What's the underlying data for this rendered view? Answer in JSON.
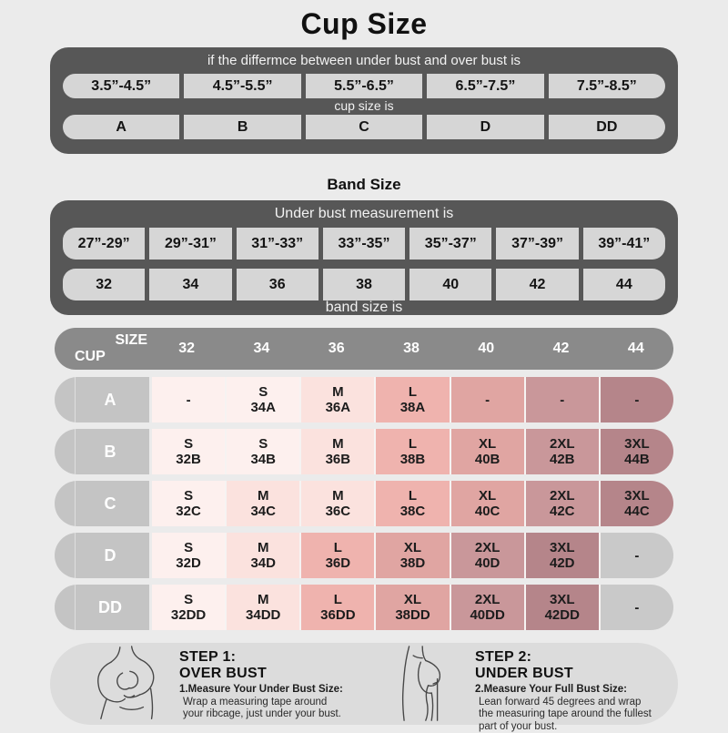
{
  "title": "Cup Size",
  "band_title": "Band Size",
  "cup_table": {
    "header": "if the differmce between under bust and over bust is",
    "ranges": [
      "3.5”-4.5”",
      "4.5”-5.5”",
      "5.5”-6.5”",
      "6.5”-7.5”",
      "7.5”-8.5”"
    ],
    "mid_label": "cup size is",
    "cups": [
      "A",
      "B",
      "C",
      "D",
      "DD"
    ]
  },
  "band_table": {
    "header": "Under bust measurement is",
    "ranges": [
      "27”-29”",
      "29”-31”",
      "31”-33”",
      "33”-35”",
      "35”-37”",
      "37”-39”",
      "39”-41”"
    ],
    "bands": [
      "32",
      "34",
      "36",
      "38",
      "40",
      "42",
      "44"
    ],
    "footer_label": "band size is"
  },
  "matrix": {
    "corner_top": "SIZE",
    "corner_bottom": "CUP",
    "columns": [
      "32",
      "34",
      "36",
      "38",
      "40",
      "42",
      "44"
    ],
    "rows": [
      {
        "cup": "A",
        "cells": [
          {
            "size": "-",
            "code": "",
            "shade": "s"
          },
          {
            "size": "S",
            "code": "34A",
            "shade": "s"
          },
          {
            "size": "M",
            "code": "36A",
            "shade": "m"
          },
          {
            "size": "L",
            "code": "38A",
            "shade": "l"
          },
          {
            "size": "-",
            "code": "",
            "shade": "xl"
          },
          {
            "size": "-",
            "code": "",
            "shade": "xxl"
          },
          {
            "size": "-",
            "code": "",
            "shade": "xxxl"
          }
        ]
      },
      {
        "cup": "B",
        "cells": [
          {
            "size": "S",
            "code": "32B",
            "shade": "s"
          },
          {
            "size": "S",
            "code": "34B",
            "shade": "s"
          },
          {
            "size": "M",
            "code": "36B",
            "shade": "m"
          },
          {
            "size": "L",
            "code": "38B",
            "shade": "l"
          },
          {
            "size": "XL",
            "code": "40B",
            "shade": "xl"
          },
          {
            "size": "2XL",
            "code": "42B",
            "shade": "xxl"
          },
          {
            "size": "3XL",
            "code": "44B",
            "shade": "xxxl"
          }
        ]
      },
      {
        "cup": "C",
        "cells": [
          {
            "size": "S",
            "code": "32C",
            "shade": "s"
          },
          {
            "size": "M",
            "code": "34C",
            "shade": "m"
          },
          {
            "size": "M",
            "code": "36C",
            "shade": "m"
          },
          {
            "size": "L",
            "code": "38C",
            "shade": "l"
          },
          {
            "size": "XL",
            "code": "40C",
            "shade": "xl"
          },
          {
            "size": "2XL",
            "code": "42C",
            "shade": "xxl"
          },
          {
            "size": "3XL",
            "code": "44C",
            "shade": "xxxl"
          }
        ]
      },
      {
        "cup": "D",
        "cells": [
          {
            "size": "S",
            "code": "32D",
            "shade": "s"
          },
          {
            "size": "M",
            "code": "34D",
            "shade": "m"
          },
          {
            "size": "L",
            "code": "36D",
            "shade": "l"
          },
          {
            "size": "XL",
            "code": "38D",
            "shade": "xl"
          },
          {
            "size": "2XL",
            "code": "40D",
            "shade": "xxl"
          },
          {
            "size": "3XL",
            "code": "42D",
            "shade": "xxxl"
          },
          {
            "size": "-",
            "code": "",
            "shade": "gray"
          }
        ]
      },
      {
        "cup": "DD",
        "cells": [
          {
            "size": "S",
            "code": "32DD",
            "shade": "s"
          },
          {
            "size": "M",
            "code": "34DD",
            "shade": "m"
          },
          {
            "size": "L",
            "code": "36DD",
            "shade": "l"
          },
          {
            "size": "XL",
            "code": "38DD",
            "shade": "xl"
          },
          {
            "size": "2XL",
            "code": "40DD",
            "shade": "xxl"
          },
          {
            "size": "3XL",
            "code": "42DD",
            "shade": "xxxl"
          },
          {
            "size": "-",
            "code": "",
            "shade": "gray"
          }
        ]
      }
    ]
  },
  "steps": [
    {
      "step": "STEP 1:",
      "area": "OVER BUST",
      "bold": "1.Measure Your Under Bust Size:",
      "lines": [
        "Wrap a measuring tape around",
        "your ribcage, just under your bust."
      ],
      "icon": "measuring-over-bust-figure"
    },
    {
      "step": "STEP 2:",
      "area": "UNDER BUST",
      "bold": "2.Measure Your Full Bust Size:",
      "lines": [
        "Lean forward 45 degrees and wrap",
        "the measuring tape around the fullest",
        "part of your bust."
      ],
      "icon": "measuring-under-bust-figure"
    }
  ],
  "colors": {
    "page_bg": "#ebebeb",
    "panel_dark": "#575757",
    "panel_cell": "#d6d6d6",
    "matrix_header_bg": "#8a8a8a",
    "row_label_bg": "#c4c4c4",
    "steps_panel_bg": "#dcdcdc",
    "shades": {
      "s": "#fdf0ee",
      "m": "#fbe2de",
      "l": "#efb3ae",
      "xl": "#e0a5a2",
      "xxl": "#c9979a",
      "xxxl": "#b5858a",
      "gray": "#c9c9c9"
    }
  }
}
